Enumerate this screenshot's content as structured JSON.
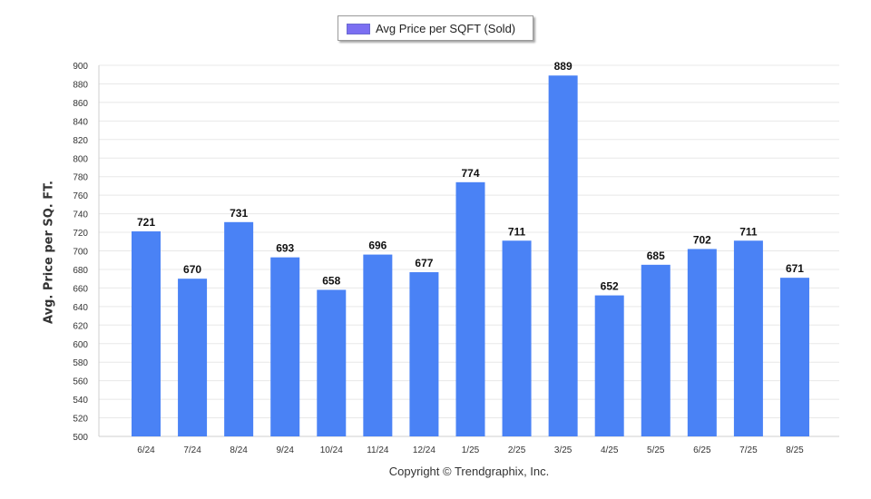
{
  "legend": {
    "label": "Avg Price per SQFT (Sold)",
    "swatch_color": "#7b6ff2"
  },
  "copyright": "Copyright © Trendgraphix, Inc.",
  "colors": {
    "bar": "#4a82f5",
    "grid": "#e8e8e8",
    "axis_text": "#333333"
  },
  "chart_data": {
    "type": "bar",
    "title": "",
    "xlabel": "",
    "ylabel": "Avg. Price per SQ. FT.",
    "ylim": [
      500,
      900
    ],
    "ytick_step": 20,
    "grid": true,
    "legend_position": "top-center",
    "data_labels": true,
    "categories": [
      "6/24",
      "7/24",
      "8/24",
      "9/24",
      "10/24",
      "11/24",
      "12/24",
      "1/25",
      "2/25",
      "3/25",
      "4/25",
      "5/25",
      "6/25",
      "7/25",
      "8/25"
    ],
    "series": [
      {
        "name": "Avg Price per SQFT (Sold)",
        "values": [
          721,
          670,
          731,
          693,
          658,
          696,
          677,
          774,
          711,
          889,
          652,
          685,
          702,
          711,
          671
        ]
      }
    ]
  }
}
